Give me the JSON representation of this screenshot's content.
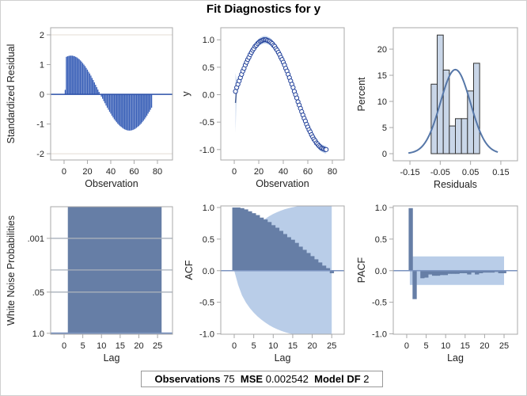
{
  "title": "Fit Diagnostics for y",
  "footer": {
    "observations_label": "Observations",
    "observations_value": "75",
    "mse_label": "MSE",
    "mse_value": "0.002542",
    "model_df_label": "Model DF",
    "model_df_value": "2"
  },
  "colors": {
    "bar_dark": "#667ea6",
    "band_light": "#b9cde8",
    "needle_blue": "#3b61b8",
    "marker_blue": "#1f3f99",
    "hist_fill": "#c9d6e8",
    "curve": "#5677a8",
    "frame": "#a8a8a8",
    "grid": "#e4dcd4"
  },
  "chart_data": [
    {
      "id": "residuals",
      "type": "needle",
      "xlabel": "Observation",
      "ylabel": "Standardized Residual",
      "xlim": [
        -11.5,
        92.9
      ],
      "ylim": [
        -2.21,
        2.24
      ],
      "xticks": [
        0,
        20,
        40,
        60,
        80
      ],
      "xtick_labels": [
        "0",
        "20",
        "40",
        "60",
        "80"
      ],
      "yticks": [
        -2,
        -1,
        0,
        1,
        2
      ],
      "ytick_labels": [
        "-2",
        "-1",
        "0",
        "1",
        "2"
      ],
      "reference_lines": [
        -2,
        2
      ],
      "values": [
        0.15,
        1.26,
        1.28,
        1.29,
        1.3,
        1.3,
        1.3,
        1.29,
        1.28,
        1.26,
        1.24,
        1.21,
        1.18,
        1.14,
        1.1,
        1.05,
        1.0,
        0.95,
        0.89,
        0.83,
        0.76,
        0.7,
        0.63,
        0.55,
        0.48,
        0.4,
        0.32,
        0.24,
        0.16,
        0.08,
        0.0,
        -0.08,
        -0.15,
        -0.23,
        -0.3,
        -0.38,
        -0.45,
        -0.52,
        -0.59,
        -0.65,
        -0.72,
        -0.78,
        -0.84,
        -0.89,
        -0.94,
        -0.99,
        -1.03,
        -1.07,
        -1.1,
        -1.13,
        -1.16,
        -1.18,
        -1.2,
        -1.21,
        -1.22,
        -1.22,
        -1.22,
        -1.21,
        -1.2,
        -1.18,
        -1.16,
        -1.13,
        -1.1,
        -1.07,
        -1.03,
        -0.99,
        -0.94,
        -0.89,
        -0.84,
        -0.78,
        -0.72,
        -0.65,
        -0.59,
        -0.52,
        -0.45
      ]
    },
    {
      "id": "fit",
      "type": "scatter",
      "xlabel": "Observation",
      "ylabel": "y",
      "xlim": [
        -11,
        89.7
      ],
      "ylim": [
        -1.19,
        1.22
      ],
      "xticks": [
        0,
        20,
        40,
        60,
        80
      ],
      "xtick_labels": [
        "0",
        "20",
        "40",
        "60",
        "80"
      ],
      "yticks": [
        -1,
        -0.5,
        0,
        0.5,
        1
      ],
      "ytick_labels": [
        "-1.0",
        "-0.5",
        "0.0",
        "0.5",
        "1.0"
      ],
      "y": [
        0.06,
        0.13,
        0.19,
        0.25,
        0.31,
        0.37,
        0.43,
        0.48,
        0.54,
        0.59,
        0.64,
        0.68,
        0.73,
        0.77,
        0.81,
        0.84,
        0.88,
        0.9,
        0.93,
        0.95,
        0.97,
        0.98,
        0.99,
        1.0,
        1.0,
        1.0,
        0.99,
        0.98,
        0.97,
        0.95,
        0.93,
        0.9,
        0.88,
        0.84,
        0.81,
        0.77,
        0.73,
        0.68,
        0.64,
        0.59,
        0.54,
        0.48,
        0.43,
        0.37,
        0.31,
        0.25,
        0.19,
        0.13,
        0.06,
        0.0,
        -0.06,
        -0.13,
        -0.19,
        -0.25,
        -0.31,
        -0.37,
        -0.43,
        -0.48,
        -0.54,
        -0.59,
        -0.64,
        -0.68,
        -0.73,
        -0.77,
        -0.81,
        -0.84,
        -0.88,
        -0.9,
        -0.93,
        -0.95,
        -0.97,
        -0.98,
        -0.99,
        -1.0,
        -1.0
      ],
      "predicted": [
        -0.15,
        0.13,
        0.19,
        0.25,
        0.31,
        0.37,
        0.43,
        0.48,
        0.54,
        0.59,
        0.64,
        0.68,
        0.73,
        0.77,
        0.81,
        0.84,
        0.88,
        0.9,
        0.93,
        0.95,
        0.97,
        0.98,
        0.99,
        1.0,
        1.0,
        1.0,
        0.99,
        0.98,
        0.97,
        0.95,
        0.93,
        0.9,
        0.88,
        0.84,
        0.81,
        0.77,
        0.73,
        0.68,
        0.64,
        0.59,
        0.54,
        0.48,
        0.43,
        0.37,
        0.31,
        0.25,
        0.19,
        0.13,
        0.06,
        0.0,
        -0.06,
        -0.13,
        -0.19,
        -0.25,
        -0.31,
        -0.37,
        -0.43,
        -0.48,
        -0.54,
        -0.59,
        -0.64,
        -0.68,
        -0.73,
        -0.77,
        -0.81,
        -0.84,
        -0.88,
        -0.9,
        -0.93,
        -0.95,
        -0.97,
        -0.98,
        -0.99,
        -1.0,
        -1.0
      ]
    },
    {
      "id": "histogram",
      "type": "bar",
      "xlabel": "Residuals",
      "ylabel": "Percent",
      "xlim": [
        -0.205,
        0.205
      ],
      "ylim": [
        -1.36,
        24.1
      ],
      "xticks": [
        -0.15,
        -0.05,
        0.05,
        0.15
      ],
      "xtick_labels": [
        "-0.15",
        "-0.05",
        "0.05",
        "0.15"
      ],
      "yticks": [
        0,
        5,
        10,
        15,
        20
      ],
      "ytick_labels": [
        "0",
        "5",
        "10",
        "15",
        "20"
      ],
      "bin_edges": [
        -0.08,
        -0.06,
        -0.04,
        -0.02,
        0.0,
        0.02,
        0.04,
        0.06,
        0.08
      ],
      "values": [
        13.3,
        22.7,
        16.0,
        5.3,
        6.7,
        6.7,
        12.0,
        17.3
      ],
      "normal_curve": {
        "mean": 0.0,
        "sd": 0.0496,
        "range": [
          -0.155,
          0.14
        ]
      }
    },
    {
      "id": "white-noise",
      "type": "bar",
      "xlabel": "Lag",
      "ylabel": "White Noise Probabilities",
      "xlim": [
        -3.6,
        29
      ],
      "ylim_neglog10": [
        -0.03,
        4.0
      ],
      "xticks": [
        0,
        5,
        10,
        15,
        20,
        25
      ],
      "xtick_labels": [
        "0",
        "5",
        "10",
        "15",
        "20",
        "25"
      ],
      "yticks": [
        1.0,
        0.05,
        0.001
      ],
      "ytick_labels": [
        "1.0",
        ".05",
        ".001"
      ],
      "reference_lines": [
        0.01
      ],
      "lags": [
        1,
        2,
        3,
        4,
        5,
        6,
        7,
        8,
        9,
        10,
        11,
        12,
        13,
        14,
        15,
        16,
        17,
        18,
        19,
        20,
        21,
        22,
        23,
        24,
        25
      ],
      "p_values": [
        0,
        0,
        0,
        0,
        0,
        0,
        0,
        0,
        0,
        0,
        0,
        0,
        0,
        0,
        0,
        0,
        0,
        0,
        0,
        0,
        0,
        0,
        0,
        0,
        0
      ]
    },
    {
      "id": "acf",
      "type": "bar",
      "xlabel": "Lag",
      "ylabel": "ACF",
      "xlim": [
        -3.45,
        28.2
      ],
      "ylim": [
        -1.006,
        1.025
      ],
      "xticks": [
        0,
        5,
        10,
        15,
        20,
        25
      ],
      "xtick_labels": [
        "0",
        "5",
        "10",
        "15",
        "20",
        "25"
      ],
      "yticks": [
        -1,
        -0.5,
        0,
        0.5,
        1
      ],
      "ytick_labels": [
        "-1.0",
        "-0.5",
        "0.0",
        "0.5",
        "1.0"
      ],
      "values": [
        1.0,
        1.0,
        0.99,
        0.97,
        0.94,
        0.91,
        0.88,
        0.84,
        0.81,
        0.77,
        0.72,
        0.68,
        0.63,
        0.58,
        0.53,
        0.49,
        0.44,
        0.38,
        0.33,
        0.28,
        0.23,
        0.18,
        0.13,
        0.08,
        0.04,
        -0.04
      ],
      "n": 75
    },
    {
      "id": "pacf",
      "type": "bar",
      "xlabel": "Lag",
      "ylabel": "PACF",
      "xlim": [
        -3.45,
        28.45
      ],
      "ylim": [
        -1.006,
        1.025
      ],
      "xticks": [
        0,
        5,
        10,
        15,
        20,
        25
      ],
      "xtick_labels": [
        "0",
        "5",
        "10",
        "15",
        "20",
        "25"
      ],
      "yticks": [
        -1,
        -0.5,
        0,
        0.5,
        1
      ],
      "ytick_labels": [
        "-1.0",
        "-0.5",
        "0.0",
        "0.5",
        "1.0"
      ],
      "values": [
        0.99,
        -0.45,
        0.01,
        -0.12,
        -0.11,
        -0.06,
        -0.08,
        -0.08,
        -0.07,
        -0.07,
        -0.05,
        -0.05,
        -0.05,
        -0.04,
        -0.04,
        -0.06,
        -0.03,
        -0.06,
        -0.04,
        -0.03,
        -0.03,
        -0.03,
        -0.02,
        -0.04,
        -0.04
      ],
      "confidence_band": 0.226
    }
  ]
}
